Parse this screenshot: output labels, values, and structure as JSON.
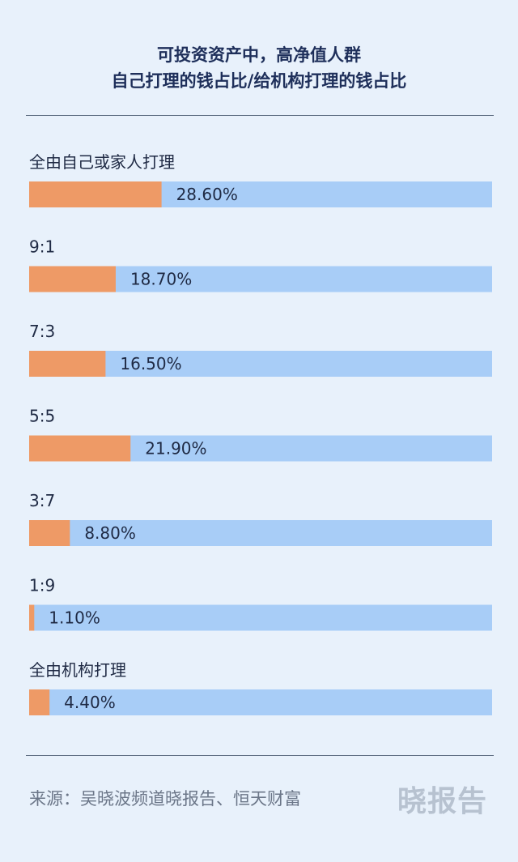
{
  "header": {
    "title_line1": "可投资资产中，高净值人群",
    "title_line2": "自己打理的钱占比/给机构打理的钱占比"
  },
  "colors": {
    "self": "#ee9a66",
    "institution": "#a8cdf7",
    "background": "#e8f1fb"
  },
  "chart_data": {
    "type": "bar",
    "orientation": "horizontal",
    "stacked": true,
    "categories": [
      "全由自己或家人打理",
      "9:1",
      "7:3",
      "5:5",
      "3:7",
      "1:9",
      "全由机构打理"
    ],
    "values": [
      28.6,
      18.7,
      16.5,
      21.9,
      8.8,
      1.1,
      4.4
    ],
    "value_labels": [
      "28.60%",
      "18.70%",
      "16.50%",
      "21.90%",
      "8.80%",
      "1.10%",
      "4.40%"
    ],
    "xlim": [
      0,
      100
    ],
    "grid": false,
    "legend": "none"
  },
  "footer": {
    "source": "来源：吴晓波频道晓报告、恒天财富",
    "logo": "晓报告"
  }
}
